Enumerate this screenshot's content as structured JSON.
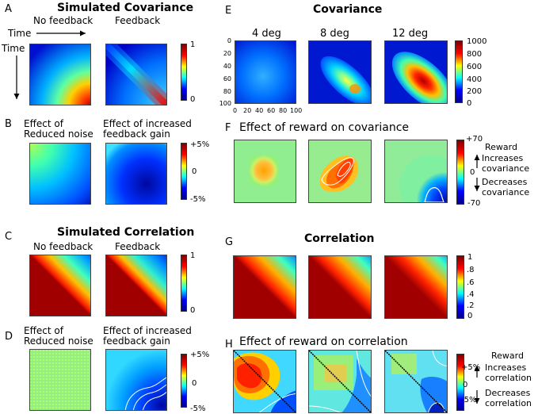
{
  "colors": {
    "jet_stops": [
      "#00008f",
      "#0000ff",
      "#00ffff",
      "#ffff00",
      "#ff0000",
      "#800000"
    ]
  },
  "A": {
    "letter": "A",
    "title": "Simulated Covariance",
    "left": "No feedback",
    "right": "Feedback",
    "time_x": "Time",
    "time_y": "Time",
    "cbar_ticks": [
      "1",
      "0"
    ]
  },
  "B": {
    "letter": "B",
    "left": "Effect of Reduced noise",
    "right": "Effect of increased feedback gain",
    "cbar_ticks": [
      "+5%",
      "0",
      "-5%"
    ]
  },
  "C": {
    "letter": "C",
    "title": "Simulated Correlation",
    "left": "No feedback",
    "right": "Feedback",
    "cbar_ticks": [
      "1",
      "0"
    ]
  },
  "D": {
    "letter": "D",
    "left": "Effect of Reduced noise",
    "right": "Effect of increased feedback gain",
    "cbar_ticks": [
      "+5%",
      "0",
      "-5%"
    ]
  },
  "E": {
    "letter": "E",
    "title": "Covariance",
    "cols": [
      "4 deg",
      "8 deg",
      "12 deg"
    ],
    "yticks": [
      "0",
      "20",
      "40",
      "60",
      "80",
      "100"
    ],
    "xticks": [
      "0",
      "20",
      "40",
      "60",
      "80",
      "100"
    ],
    "cbar_ticks": [
      "1000",
      "800",
      "600",
      "400",
      "200",
      "0"
    ]
  },
  "F": {
    "letter": "F",
    "title": "Effect of reward on covariance",
    "cbar_ticks": [
      "+70",
      "0",
      "-70"
    ],
    "reward": "Reward",
    "inc": "Increases",
    "inc2": "covariance",
    "dec": "Decreases",
    "dec2": "covariance"
  },
  "G": {
    "letter": "G",
    "title": "Correlation",
    "cbar_ticks": [
      "1",
      ".8",
      ".6",
      ".4",
      ".2",
      "0"
    ]
  },
  "H": {
    "letter": "H",
    "title": "Effect of reward on correlation",
    "cbar_ticks": [
      "+5%",
      "0",
      "-5%"
    ],
    "reward": "Reward",
    "inc": "Increases",
    "inc2": "correlation",
    "dec": "Decreases",
    "dec2": "correlation"
  }
}
